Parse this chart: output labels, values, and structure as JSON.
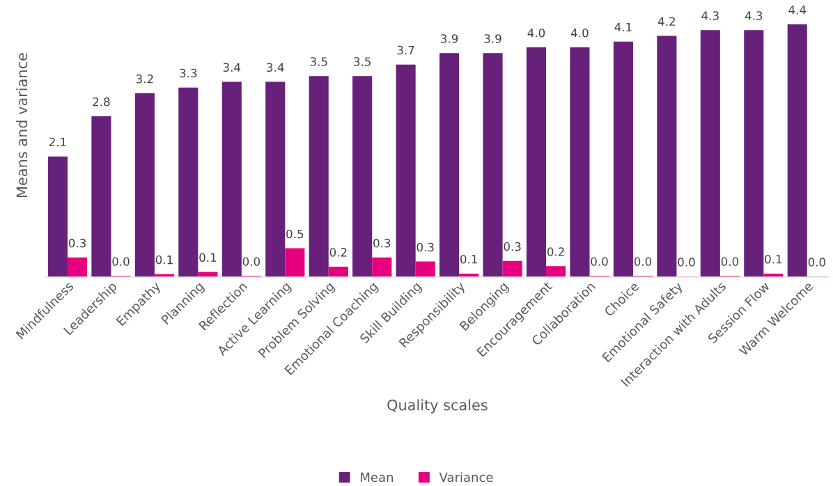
{
  "chart_data": {
    "type": "bar",
    "xlabel": "Quality scales",
    "ylabel": "Means and variance",
    "categories": [
      "Mindfulness",
      "Leadership",
      "Empathy",
      "Planning",
      "Reflection",
      "Active Learning",
      "Problem Solving",
      "Emotional Coaching",
      "Skill Building",
      "Responsibility",
      "Belonging",
      "Encouragement",
      "Collaboration",
      "Choice",
      "Emotional Safety",
      "Interaction with Adults",
      "Session Flow",
      "Warm Welcome"
    ],
    "series": [
      {
        "name": "Mean",
        "color": "#68217a",
        "values": [
          2.1,
          2.8,
          3.2,
          3.3,
          3.4,
          3.4,
          3.5,
          3.5,
          3.7,
          3.9,
          3.9,
          4.0,
          4.0,
          4.1,
          4.2,
          4.3,
          4.3,
          4.4
        ],
        "value_labels": [
          "2.1",
          "2.8",
          "3.2",
          "3.3",
          "3.4",
          "3.4",
          "3.5",
          "3.5",
          "3.7",
          "3.9",
          "3.9",
          "4.0",
          "4.0",
          "4.1",
          "4.2",
          "4.3",
          "4.3",
          "4.4"
        ]
      },
      {
        "name": "Variance",
        "color": "#e6007e",
        "values": [
          0.34,
          0.02,
          0.05,
          0.09,
          0.02,
          0.5,
          0.18,
          0.34,
          0.27,
          0.06,
          0.28,
          0.19,
          0.02,
          0.02,
          0.01,
          0.02,
          0.06,
          0.01
        ],
        "value_labels": [
          "0.3",
          "0.0",
          "0.1",
          "0.1",
          "0.0",
          "0.5",
          "0.2",
          "0.3",
          "0.3",
          "0.1",
          "0.3",
          "0.2",
          "0.0",
          "0.0",
          "0.0",
          "0.0",
          "0.1",
          "0.0"
        ]
      }
    ],
    "legend": "bottom",
    "grid": false
  }
}
